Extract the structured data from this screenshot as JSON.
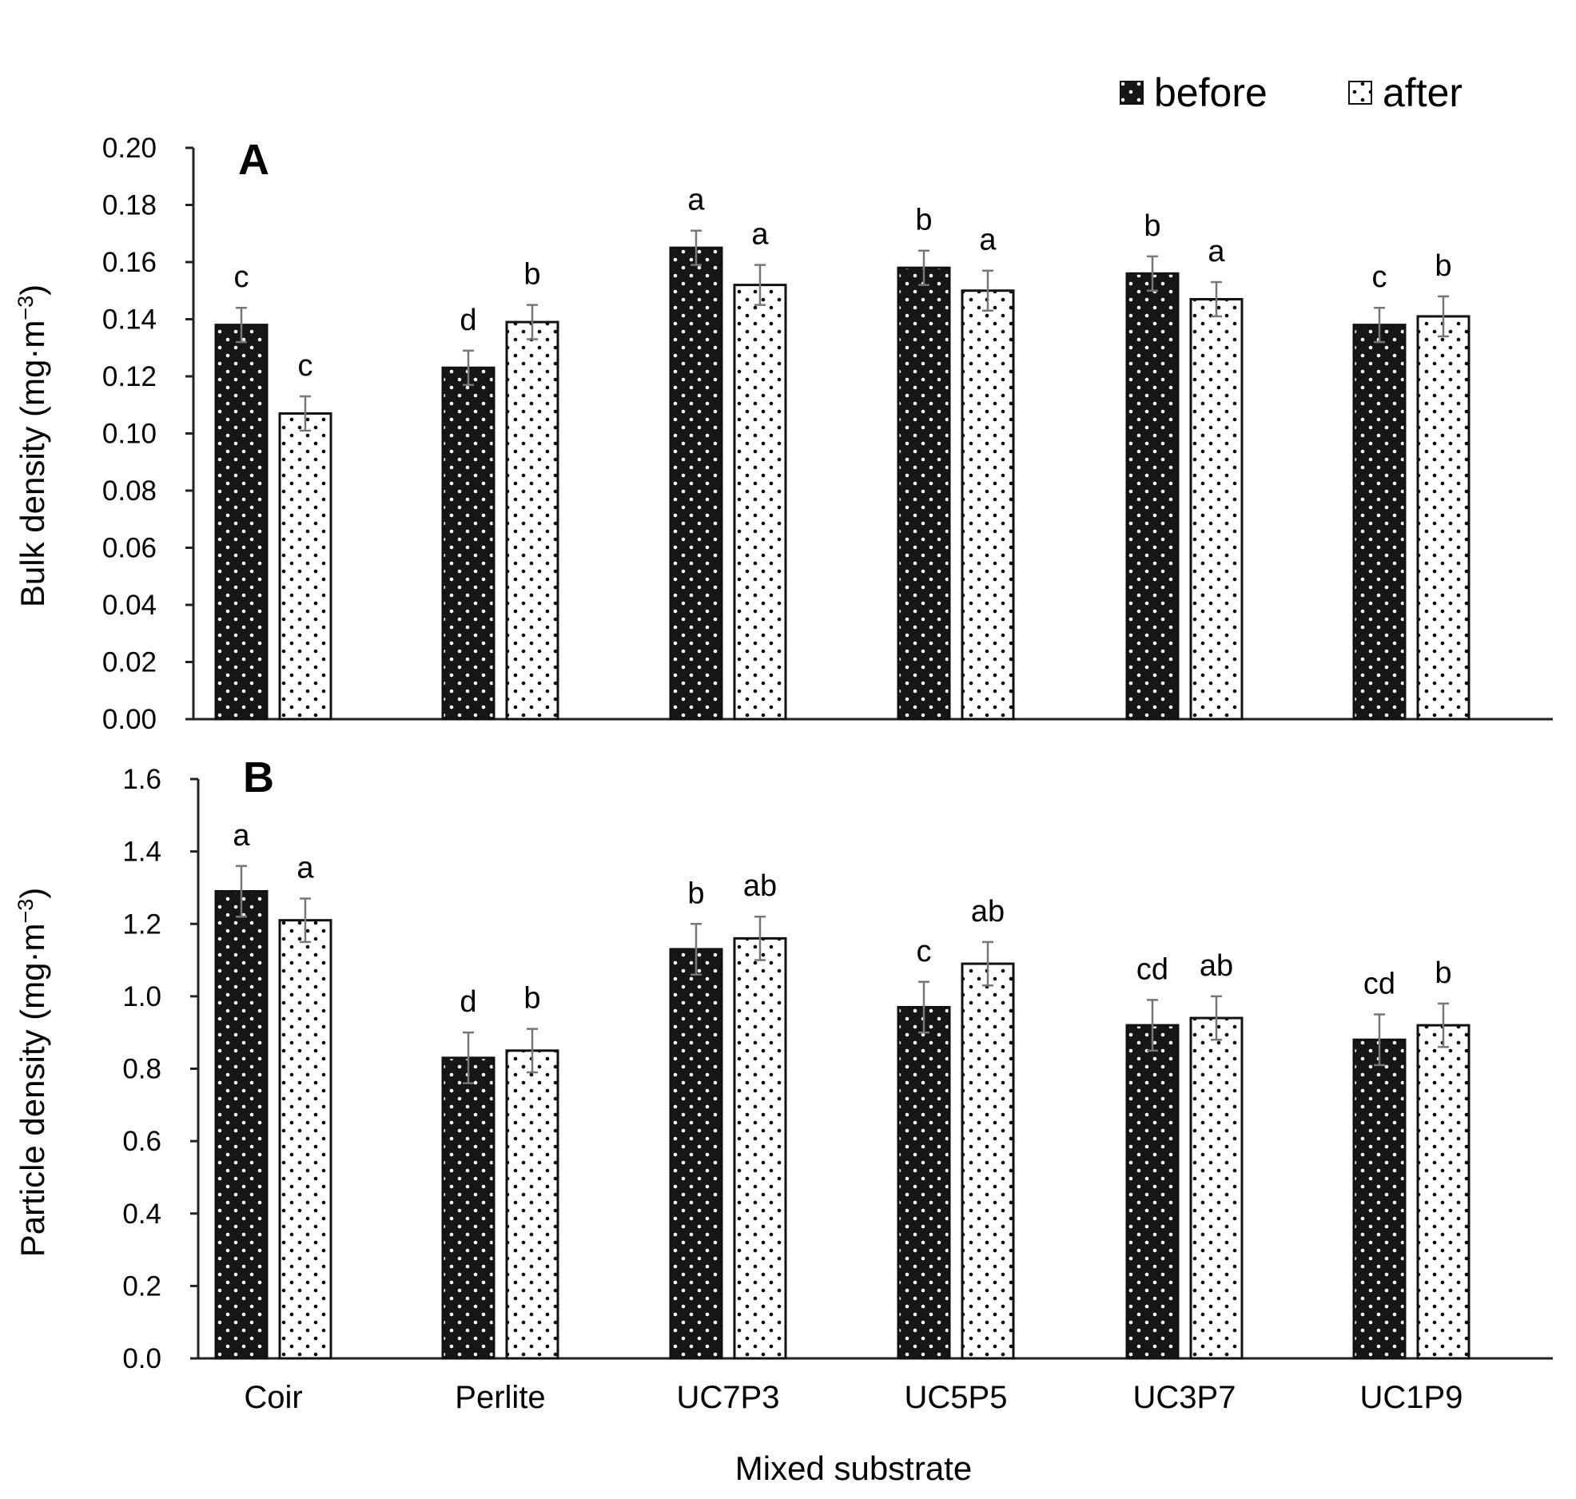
{
  "legend": {
    "before": "before",
    "after": "after"
  },
  "xlabel": "Mixed substrate",
  "colors": {
    "before_fill": "#161616",
    "after_fill": "#ffffff",
    "dots_on_before": "#ffffff",
    "dots_on_after": "#000000",
    "error_bar": "#777777"
  },
  "chart_data": [
    {
      "type": "bar",
      "panel": "A",
      "title": "",
      "ylabel": "Bulk density (mg·m",
      "ylabel_sup": "−3",
      "ylabel_close": ")",
      "ylim": [
        0,
        0.2
      ],
      "ytick_values": [
        0,
        0.02,
        0.04,
        0.06,
        0.08,
        0.1,
        0.12,
        0.14,
        0.16,
        0.18,
        0.2
      ],
      "ytick_labels": [
        "0.00",
        "0.02",
        "0.04",
        "0.06",
        "0.08",
        "0.10",
        "0.12",
        "0.14",
        "0.16",
        "0.18",
        "0.20"
      ],
      "categories": [
        "Coir",
        "Perlite",
        "UC7P3",
        "UC5P5",
        "UC3P7",
        "UC1P9"
      ],
      "series": [
        {
          "name": "before",
          "values": [
            0.138,
            0.123,
            0.165,
            0.158,
            0.156,
            0.138
          ],
          "errors": [
            0.006,
            0.006,
            0.006,
            0.006,
            0.006,
            0.006
          ],
          "letters": [
            "c",
            "d",
            "a",
            "b",
            "b",
            "c"
          ]
        },
        {
          "name": "after",
          "values": [
            0.107,
            0.139,
            0.152,
            0.15,
            0.147,
            0.141
          ],
          "errors": [
            0.006,
            0.006,
            0.007,
            0.007,
            0.006,
            0.007
          ],
          "letters": [
            "c",
            "b",
            "a",
            "a",
            "a",
            "b"
          ]
        }
      ]
    },
    {
      "type": "bar",
      "panel": "B",
      "title": "",
      "ylabel": "Particle density (mg·m",
      "ylabel_sup": "−3",
      "ylabel_close": ")",
      "ylim": [
        0,
        1.6
      ],
      "ytick_values": [
        0,
        0.2,
        0.4,
        0.6,
        0.8,
        1.0,
        1.2,
        1.4,
        1.6
      ],
      "ytick_labels": [
        "0.0",
        "0.2",
        "0.4",
        "0.6",
        "0.8",
        "1.0",
        "1.2",
        "1.4",
        "1.6"
      ],
      "categories": [
        "Coir",
        "Perlite",
        "UC7P3",
        "UC5P5",
        "UC3P7",
        "UC1P9"
      ],
      "series": [
        {
          "name": "before",
          "values": [
            1.29,
            0.83,
            1.13,
            0.97,
            0.92,
            0.88
          ],
          "errors": [
            0.07,
            0.07,
            0.07,
            0.07,
            0.07,
            0.07
          ],
          "letters": [
            "a",
            "d",
            "b",
            "c",
            "cd",
            "cd"
          ]
        },
        {
          "name": "after",
          "values": [
            1.21,
            0.85,
            1.16,
            1.09,
            0.94,
            0.92
          ],
          "errors": [
            0.06,
            0.06,
            0.06,
            0.06,
            0.06,
            0.06
          ],
          "letters": [
            "a",
            "b",
            "ab",
            "ab",
            "ab",
            "b"
          ]
        }
      ]
    }
  ]
}
